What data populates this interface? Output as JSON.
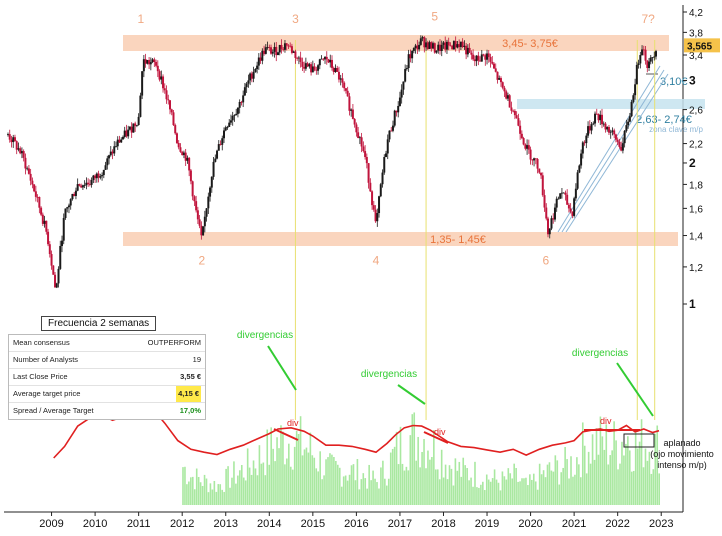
{
  "chart_data": {
    "type": "line",
    "title": "",
    "x_ticks": [
      "2009",
      "2010",
      "2011",
      "2012",
      "2013",
      "2014",
      "2015",
      "2016",
      "2017",
      "2018",
      "2019",
      "2020",
      "2021",
      "2022",
      "2023"
    ],
    "y_ticks": [
      "4,2",
      "3,8",
      "3,4",
      "3",
      "2,6",
      "2,2",
      "2",
      "1,8",
      "1,6",
      "1,4",
      "1,2",
      "1"
    ],
    "y_scale": "log",
    "ylim": [
      0.9,
      4.3
    ],
    "last_price_label": "3,565",
    "price_series": {
      "x": [
        2008.0,
        2008.3,
        2008.6,
        2008.9,
        2009.1,
        2009.3,
        2009.6,
        2009.9,
        2010.2,
        2010.5,
        2010.8,
        2011.0,
        2011.1,
        2011.4,
        2011.6,
        2011.9,
        2012.1,
        2012.3,
        2012.45,
        2012.7,
        2013.0,
        2013.3,
        2013.6,
        2013.9,
        2014.1,
        2014.4,
        2014.7,
        2015.0,
        2015.3,
        2015.6,
        2015.9,
        2016.2,
        2016.45,
        2016.7,
        2017.0,
        2017.2,
        2017.5,
        2017.8,
        2018.1,
        2018.4,
        2018.7,
        2019.0,
        2019.3,
        2019.6,
        2019.9,
        2020.2,
        2020.4,
        2020.7,
        2020.95,
        2021.2,
        2021.5,
        2021.8,
        2022.1,
        2022.3,
        2022.55,
        2022.7,
        2022.9
      ],
      "y": [
        2.3,
        2.1,
        1.75,
        1.4,
        1.05,
        1.55,
        1.8,
        1.82,
        1.95,
        2.2,
        2.35,
        2.5,
        3.3,
        3.25,
        2.85,
        2.2,
        2.05,
        1.6,
        1.36,
        1.95,
        2.4,
        2.65,
        3.1,
        3.5,
        3.45,
        3.6,
        3.3,
        3.15,
        3.35,
        3.05,
        2.55,
        2.05,
        1.45,
        2.2,
        2.75,
        3.35,
        3.65,
        3.5,
        3.55,
        3.6,
        3.3,
        3.4,
        2.95,
        2.6,
        2.15,
        1.95,
        1.42,
        1.75,
        1.55,
        2.2,
        2.55,
        2.35,
        2.15,
        2.6,
        3.6,
        3.2,
        3.565
      ]
    },
    "oscillator_series": {
      "x": [
        2009.05,
        2009.3,
        2009.6,
        2009.9,
        2010.2,
        2010.4,
        2010.6,
        2010.8,
        2011.0,
        2011.2,
        2011.35,
        2011.6,
        2011.9,
        2012.2,
        2012.5,
        2012.8,
        2013.1,
        2013.4,
        2013.7,
        2014.0,
        2014.2,
        2014.5,
        2014.8,
        2015.0,
        2015.3,
        2015.6,
        2015.9,
        2016.2,
        2016.45,
        2016.7,
        2016.9,
        2017.1,
        2017.3,
        2017.5,
        2017.7,
        2017.9,
        2018.1,
        2018.4,
        2018.7,
        2019.0,
        2019.3,
        2019.6,
        2019.9,
        2020.2,
        2020.5,
        2020.8,
        2021.0,
        2021.2,
        2021.4,
        2021.6,
        2021.8,
        2022.0,
        2022.2,
        2022.4,
        2022.6,
        2022.8,
        2022.95
      ],
      "y": [
        0,
        20,
        55,
        70,
        72,
        65,
        70,
        78,
        80,
        84,
        82,
        60,
        30,
        15,
        10,
        6,
        15,
        22,
        32,
        42,
        50,
        52,
        46,
        38,
        22,
        22,
        20,
        15,
        10,
        25,
        40,
        52,
        56,
        55,
        48,
        38,
        28,
        20,
        18,
        14,
        10,
        15,
        5,
        15,
        22,
        26,
        30,
        45,
        48,
        50,
        46,
        48,
        56,
        45,
        50,
        44,
        47
      ]
    },
    "volume_bars_note": "",
    "zones": [
      {
        "label": "3,45- 3,75€",
        "low": 3.45,
        "high": 3.75
      },
      {
        "label": "1,35- 1,45€",
        "low": 1.35,
        "high": 1.45
      },
      {
        "label": "2,63- 2,74€",
        "low": 2.63,
        "high": 2.74,
        "sublabel": "zona clave m/p"
      }
    ],
    "level_3_10": "3,10€",
    "points": [
      {
        "label": "1",
        "x": 2011.05,
        "y": 3.9
      },
      {
        "label": "2",
        "x": 2012.45,
        "y": 1.3
      },
      {
        "label": "3",
        "x": 2014.6,
        "y": 3.9
      },
      {
        "label": "4",
        "x": 2016.45,
        "y": 1.3
      },
      {
        "label": "5",
        "x": 2017.8,
        "y": 3.95
      },
      {
        "label": "6",
        "x": 2020.35,
        "y": 1.3
      },
      {
        "label": "7?",
        "x": 2022.7,
        "y": 3.9
      }
    ],
    "vertical_lines": [
      2014.6,
      2017.6,
      2022.45,
      2022.85
    ],
    "annotations": {
      "divergencias": [
        "divergencias",
        "divergencias",
        "divergencias"
      ],
      "div": [
        "div",
        "div",
        "div"
      ],
      "aplanado": [
        "aplanado",
        "(ojo movimiento",
        "intenso m/p)"
      ]
    },
    "frequency_label": "Frecuencia 2 semanas",
    "summary_table": [
      {
        "label": "Mean consensus",
        "value": "OUTPERFORM"
      },
      {
        "label": "Number of Analysts",
        "value": "19"
      },
      {
        "label": "Last Close Price",
        "value": "3,55 €"
      },
      {
        "label": "Average target price",
        "value": "4,15 €"
      },
      {
        "label": "Spread / Average Target",
        "value": "17,0%"
      }
    ],
    "colors": {
      "zone_fill": "#f8c7a8",
      "zone_text": "#e8733a",
      "blue_zone": "#c5e3ee",
      "blue_text": "#2f7fa0",
      "oscillator": "#e02020",
      "volume": "#a9e8a0",
      "green_text": "#33cc33",
      "point_labels": "#f0a882",
      "candle_up": "#1a1a1a",
      "candle_down": "#c0143c",
      "price_tag": "#f5c24a"
    }
  }
}
